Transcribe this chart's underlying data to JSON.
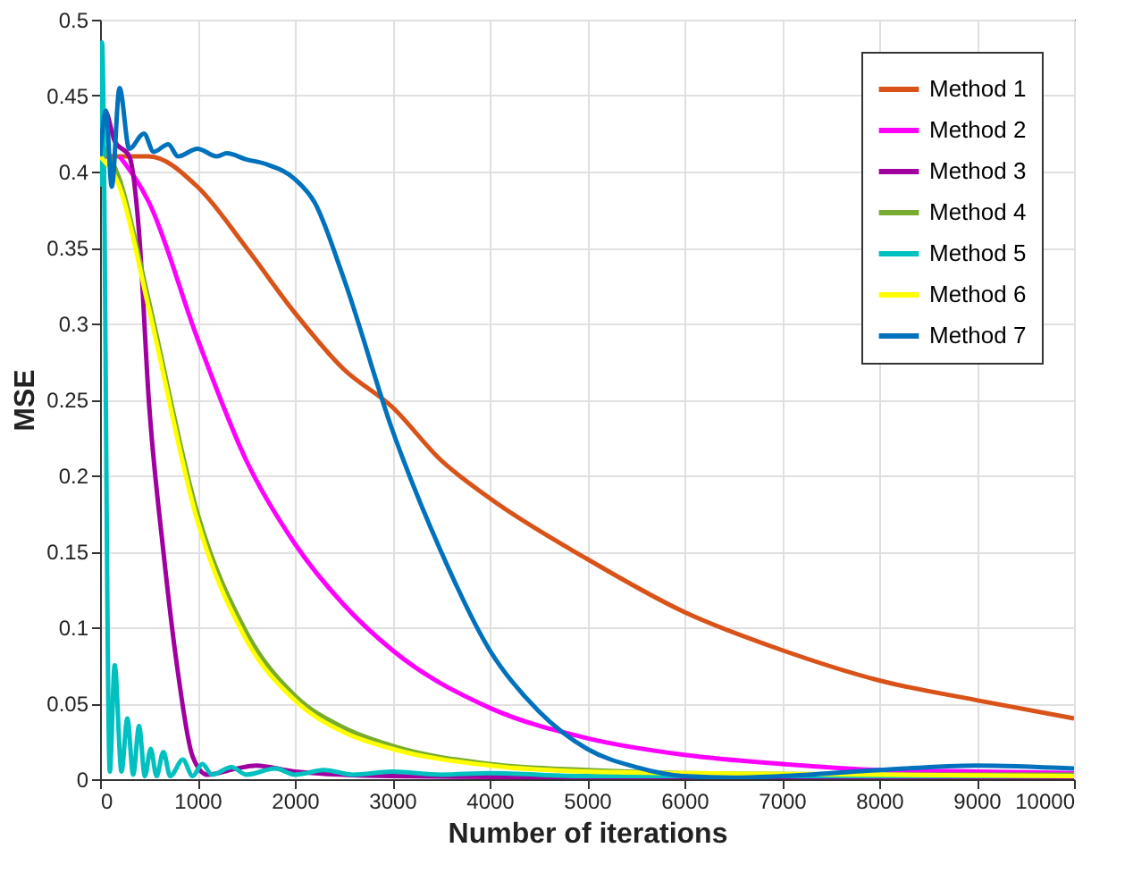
{
  "chart_data": {
    "type": "line",
    "xlabel": "Number of iterations",
    "ylabel": "MSE",
    "xlim": [
      0,
      10000
    ],
    "xticks": [
      0,
      1000,
      2000,
      3000,
      4000,
      5000,
      6000,
      7000,
      8000,
      9000,
      10000
    ],
    "ylim": [
      0,
      0.5
    ],
    "yticks": [
      0,
      0.05,
      0.1,
      0.15,
      0.2,
      0.25,
      0.3,
      0.35,
      0.4,
      0.45,
      0.5
    ],
    "grid": true,
    "legend": "top right",
    "line_style": "solid",
    "series": [
      {
        "name": "Method 1",
        "color": "#d95319",
        "x": [
          0,
          500,
          1000,
          1500,
          2000,
          2500,
          3000,
          3500,
          4000,
          5000,
          6000,
          7000,
          8000,
          9000,
          10000
        ],
        "values": [
          0.41,
          0.41,
          0.39,
          0.35,
          0.307,
          0.27,
          0.245,
          0.21,
          0.185,
          0.145,
          0.11,
          0.085,
          0.065,
          0.052,
          0.04
        ]
      },
      {
        "name": "Method 2",
        "color": "#ff00ff",
        "x": [
          200,
          500,
          1000,
          1500,
          2000,
          2500,
          3000,
          4000,
          5000,
          6000,
          7000,
          8000,
          9000,
          10000
        ],
        "values": [
          0.41,
          0.38,
          0.29,
          0.21,
          0.155,
          0.115,
          0.085,
          0.047,
          0.027,
          0.016,
          0.01,
          0.006,
          0.005,
          0.004
        ]
      },
      {
        "name": "Method 3",
        "color": "#a0009f",
        "x": [
          0,
          50,
          150,
          300,
          400,
          500,
          650,
          800,
          950,
          1100,
          1400,
          1600,
          2000,
          3000,
          5000,
          10000
        ],
        "values": [
          0.39,
          0.44,
          0.42,
          0.41,
          0.36,
          0.25,
          0.15,
          0.07,
          0.015,
          0.003,
          0.007,
          0.009,
          0.005,
          0.002,
          0.001,
          0.001
        ]
      },
      {
        "name": "Method 4",
        "color": "#77ac30",
        "x": [
          0,
          200,
          500,
          1000,
          1500,
          2000,
          2500,
          3000,
          4000,
          5000,
          6000,
          8000,
          10000
        ],
        "values": [
          0.42,
          0.395,
          0.315,
          0.175,
          0.097,
          0.055,
          0.034,
          0.022,
          0.01,
          0.006,
          0.004,
          0.003,
          0.003
        ]
      },
      {
        "name": "Method 5",
        "color": "#00c0c0",
        "x": [
          0,
          20,
          100,
          150,
          220,
          280,
          340,
          400,
          460,
          520,
          580,
          650,
          720,
          850,
          950,
          1050,
          1150,
          1350,
          1500,
          1800,
          2000,
          2300,
          2600,
          3000,
          3500,
          4000,
          5000,
          10000
        ],
        "values": [
          0.39,
          0.485,
          0.005,
          0.075,
          0.005,
          0.04,
          0.003,
          0.035,
          0.002,
          0.02,
          0.002,
          0.018,
          0.002,
          0.013,
          0.002,
          0.01,
          0.003,
          0.008,
          0.003,
          0.007,
          0.003,
          0.006,
          0.003,
          0.005,
          0.003,
          0.004,
          0.002,
          0.002
        ]
      },
      {
        "name": "Method 6",
        "color": "#ffff00",
        "x": [
          0,
          200,
          500,
          1000,
          1500,
          2000,
          2500,
          3000,
          4000,
          5000,
          6000,
          8000,
          10000
        ],
        "values": [
          0.41,
          0.39,
          0.31,
          0.17,
          0.092,
          0.052,
          0.031,
          0.02,
          0.009,
          0.005,
          0.004,
          0.003,
          0.002
        ]
      },
      {
        "name": "Method 7",
        "color": "#0072bd",
        "x": [
          0,
          60,
          120,
          200,
          300,
          450,
          550,
          700,
          800,
          1000,
          1200,
          1300,
          1500,
          1700,
          2000,
          2200,
          2500,
          3000,
          3500,
          4000,
          4500,
          5000,
          5500,
          6000,
          6500,
          7000,
          8000,
          9000,
          10000
        ],
        "values": [
          0.41,
          0.44,
          0.39,
          0.455,
          0.415,
          0.425,
          0.413,
          0.418,
          0.41,
          0.415,
          0.41,
          0.412,
          0.408,
          0.405,
          0.395,
          0.38,
          0.33,
          0.23,
          0.15,
          0.085,
          0.045,
          0.02,
          0.008,
          0.002,
          0.001,
          0.002,
          0.006,
          0.009,
          0.007
        ]
      }
    ]
  }
}
